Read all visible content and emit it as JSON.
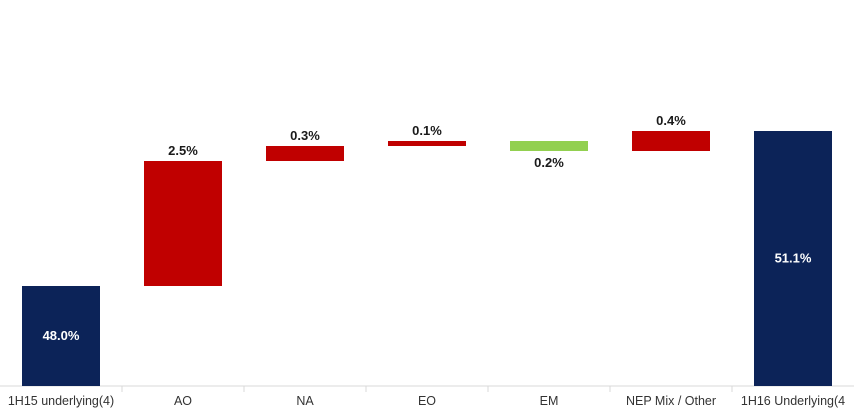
{
  "chart_data": {
    "type": "bar",
    "subtype": "waterfall",
    "categories": [
      "1H15 underlying(4)",
      "AO",
      "NA",
      "EO",
      "EM",
      "NEP Mix / Other",
      "1H16 Underlying(4"
    ],
    "values": [
      48.0,
      2.5,
      0.3,
      0.1,
      -0.2,
      0.4,
      51.1
    ],
    "value_labels": [
      "48.0%",
      "2.5%",
      "0.3%",
      "0.1%",
      "0.2%",
      "0.4%",
      "51.1%"
    ],
    "bar_kinds": [
      "total",
      "increase",
      "increase",
      "increase",
      "decrease",
      "increase",
      "total"
    ],
    "ylim": [
      46.0,
      51.5
    ],
    "title": "",
    "xlabel": "",
    "ylabel": "",
    "grid": false,
    "legend": "none",
    "colors": {
      "total": "#0c2358",
      "increase": "#c00000",
      "decrease": "#92d050",
      "axis": "#d9d9d9",
      "total_label": "#ffffff",
      "delta_label": "#1a1a1a",
      "category_label": "#333333"
    }
  }
}
